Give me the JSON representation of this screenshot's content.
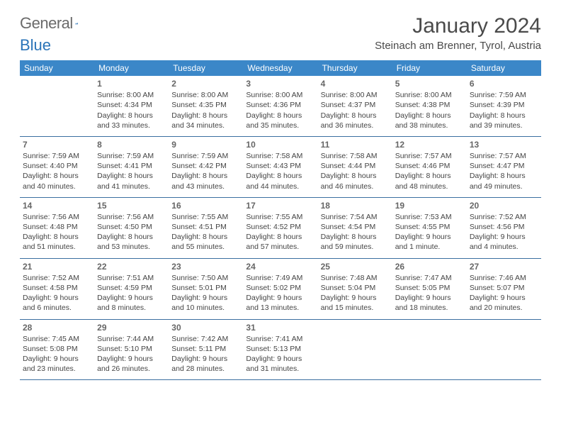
{
  "brand": {
    "text_general": "General",
    "text_blue": "Blue",
    "mark_color": "#2b74b8"
  },
  "title": "January 2024",
  "location": "Steinach am Brenner, Tyrol, Austria",
  "colors": {
    "header_bg": "#3b87c8",
    "header_text": "#ffffff",
    "row_border": "#3b6fa0",
    "page_bg": "#ffffff",
    "body_text": "#444444",
    "title_text": "#4a4a4a"
  },
  "weekdays": [
    "Sunday",
    "Monday",
    "Tuesday",
    "Wednesday",
    "Thursday",
    "Friday",
    "Saturday"
  ],
  "weeks": [
    [
      null,
      {
        "n": "1",
        "sr": "8:00 AM",
        "ss": "4:34 PM",
        "dl": "8 hours and 33 minutes."
      },
      {
        "n": "2",
        "sr": "8:00 AM",
        "ss": "4:35 PM",
        "dl": "8 hours and 34 minutes."
      },
      {
        "n": "3",
        "sr": "8:00 AM",
        "ss": "4:36 PM",
        "dl": "8 hours and 35 minutes."
      },
      {
        "n": "4",
        "sr": "8:00 AM",
        "ss": "4:37 PM",
        "dl": "8 hours and 36 minutes."
      },
      {
        "n": "5",
        "sr": "8:00 AM",
        "ss": "4:38 PM",
        "dl": "8 hours and 38 minutes."
      },
      {
        "n": "6",
        "sr": "7:59 AM",
        "ss": "4:39 PM",
        "dl": "8 hours and 39 minutes."
      }
    ],
    [
      {
        "n": "7",
        "sr": "7:59 AM",
        "ss": "4:40 PM",
        "dl": "8 hours and 40 minutes."
      },
      {
        "n": "8",
        "sr": "7:59 AM",
        "ss": "4:41 PM",
        "dl": "8 hours and 41 minutes."
      },
      {
        "n": "9",
        "sr": "7:59 AM",
        "ss": "4:42 PM",
        "dl": "8 hours and 43 minutes."
      },
      {
        "n": "10",
        "sr": "7:58 AM",
        "ss": "4:43 PM",
        "dl": "8 hours and 44 minutes."
      },
      {
        "n": "11",
        "sr": "7:58 AM",
        "ss": "4:44 PM",
        "dl": "8 hours and 46 minutes."
      },
      {
        "n": "12",
        "sr": "7:57 AM",
        "ss": "4:46 PM",
        "dl": "8 hours and 48 minutes."
      },
      {
        "n": "13",
        "sr": "7:57 AM",
        "ss": "4:47 PM",
        "dl": "8 hours and 49 minutes."
      }
    ],
    [
      {
        "n": "14",
        "sr": "7:56 AM",
        "ss": "4:48 PM",
        "dl": "8 hours and 51 minutes."
      },
      {
        "n": "15",
        "sr": "7:56 AM",
        "ss": "4:50 PM",
        "dl": "8 hours and 53 minutes."
      },
      {
        "n": "16",
        "sr": "7:55 AM",
        "ss": "4:51 PM",
        "dl": "8 hours and 55 minutes."
      },
      {
        "n": "17",
        "sr": "7:55 AM",
        "ss": "4:52 PM",
        "dl": "8 hours and 57 minutes."
      },
      {
        "n": "18",
        "sr": "7:54 AM",
        "ss": "4:54 PM",
        "dl": "8 hours and 59 minutes."
      },
      {
        "n": "19",
        "sr": "7:53 AM",
        "ss": "4:55 PM",
        "dl": "9 hours and 1 minute."
      },
      {
        "n": "20",
        "sr": "7:52 AM",
        "ss": "4:56 PM",
        "dl": "9 hours and 4 minutes."
      }
    ],
    [
      {
        "n": "21",
        "sr": "7:52 AM",
        "ss": "4:58 PM",
        "dl": "9 hours and 6 minutes."
      },
      {
        "n": "22",
        "sr": "7:51 AM",
        "ss": "4:59 PM",
        "dl": "9 hours and 8 minutes."
      },
      {
        "n": "23",
        "sr": "7:50 AM",
        "ss": "5:01 PM",
        "dl": "9 hours and 10 minutes."
      },
      {
        "n": "24",
        "sr": "7:49 AM",
        "ss": "5:02 PM",
        "dl": "9 hours and 13 minutes."
      },
      {
        "n": "25",
        "sr": "7:48 AM",
        "ss": "5:04 PM",
        "dl": "9 hours and 15 minutes."
      },
      {
        "n": "26",
        "sr": "7:47 AM",
        "ss": "5:05 PM",
        "dl": "9 hours and 18 minutes."
      },
      {
        "n": "27",
        "sr": "7:46 AM",
        "ss": "5:07 PM",
        "dl": "9 hours and 20 minutes."
      }
    ],
    [
      {
        "n": "28",
        "sr": "7:45 AM",
        "ss": "5:08 PM",
        "dl": "9 hours and 23 minutes."
      },
      {
        "n": "29",
        "sr": "7:44 AM",
        "ss": "5:10 PM",
        "dl": "9 hours and 26 minutes."
      },
      {
        "n": "30",
        "sr": "7:42 AM",
        "ss": "5:11 PM",
        "dl": "9 hours and 28 minutes."
      },
      {
        "n": "31",
        "sr": "7:41 AM",
        "ss": "5:13 PM",
        "dl": "9 hours and 31 minutes."
      },
      null,
      null,
      null
    ]
  ],
  "labels": {
    "sunrise_prefix": "Sunrise: ",
    "sunset_prefix": "Sunset: ",
    "daylight_prefix": "Daylight: "
  }
}
